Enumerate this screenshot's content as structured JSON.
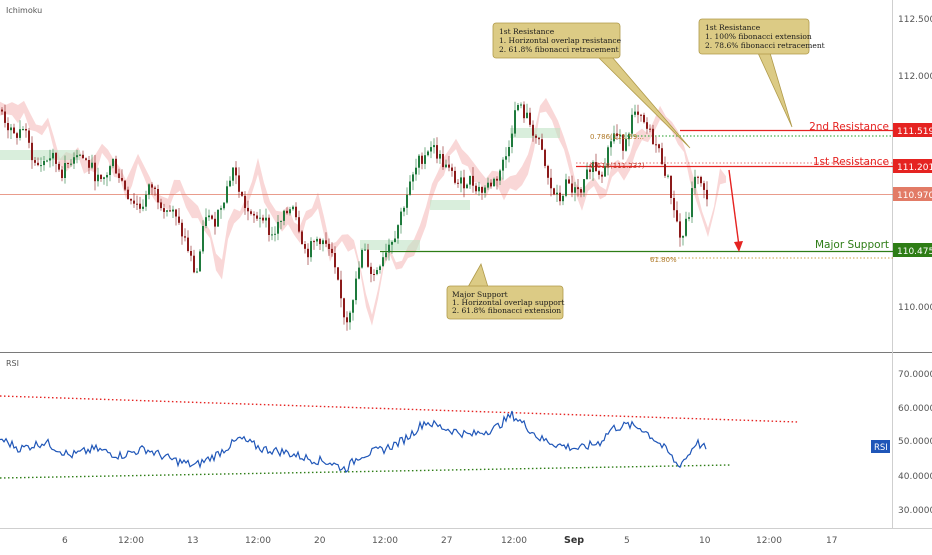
{
  "indicator_main": "Ichimoku",
  "indicator_sub": "RSI",
  "chart_data": [
    {
      "type": "candlestick",
      "price_axis": {
        "ticks": [
          "112.500",
          "112.000",
          "110.000"
        ]
      },
      "x_axis": {
        "ticks": [
          "6",
          "12:00",
          "13",
          "12:00",
          "20",
          "12:00",
          "27",
          "12:00",
          "Sep",
          "5",
          "10",
          "12:00",
          "17"
        ]
      },
      "levels": [
        {
          "id": "second-resistance",
          "label": "2nd Resistance",
          "value": "111.519",
          "color": "#e52321"
        },
        {
          "id": "first-resistance",
          "label": "1st Resistance",
          "value": "111.201",
          "color": "#e52321"
        },
        {
          "id": "last-price",
          "label": "",
          "value": "110.970",
          "color": "#e27b66"
        },
        {
          "id": "major-support",
          "label": "Major Support",
          "value": "110.475",
          "color": "#2e7d16"
        }
      ],
      "fib_labels": [
        "0.786(111.59...",
        "0.618(111.237)",
        "61.80%"
      ],
      "annotations": [
        {
          "title": "1st Resistance",
          "lines": [
            "1. Horizontal overlap resistance",
            "2. 61.8% fibonacci retracement"
          ]
        },
        {
          "title": "1st Resistance",
          "lines": [
            "1. 100% fibonacci extension",
            "2. 78.6% fibonacci retracement"
          ]
        },
        {
          "title": "Major Support",
          "lines": [
            "1. Horizontal overlap support",
            "2. 61.8% fibonacci extension"
          ]
        }
      ]
    },
    {
      "type": "line",
      "name": "RSI",
      "y_axis": {
        "ticks": [
          "70.0000",
          "60.0000",
          "50.0000",
          "40.0000",
          "30.0000"
        ]
      },
      "badge": "RSI",
      "approx_range": [
        42,
        58
      ]
    }
  ],
  "colors": {
    "up": "#1e7a3c",
    "down": "#8b1a1a",
    "cloud": "#f4b6b6",
    "cloud_green": "#bfe3c4",
    "rsi_line": "#1f56b8",
    "note_bg": "#dccb85",
    "note_border": "#b09a4a"
  }
}
